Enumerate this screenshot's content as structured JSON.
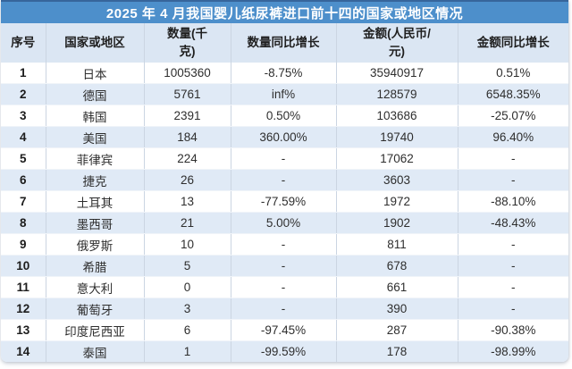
{
  "chart_data": {
    "type": "table",
    "title": "2025 年 4 月我国婴儿纸尿裤进口前十四的国家或地区情况",
    "columns": [
      "序号",
      "国家或地区",
      "数量(千克)",
      "数量同比增长",
      "金额(人民币/元)",
      "金额同比增长"
    ],
    "rows": [
      [
        "1",
        "日本",
        "1005360",
        "-8.75%",
        "35940917",
        "0.51%"
      ],
      [
        "2",
        "德国",
        "5761",
        "inf%",
        "128579",
        "6548.35%"
      ],
      [
        "3",
        "韩国",
        "2391",
        "0.50%",
        "103686",
        "-25.07%"
      ],
      [
        "4",
        "美国",
        "184",
        "360.00%",
        "19740",
        "96.40%"
      ],
      [
        "5",
        "菲律宾",
        "224",
        "-",
        "17062",
        "-"
      ],
      [
        "6",
        "捷克",
        "26",
        "-",
        "3603",
        "-"
      ],
      [
        "7",
        "土耳其",
        "13",
        "-77.59%",
        "1972",
        "-88.10%"
      ],
      [
        "8",
        "墨西哥",
        "21",
        "5.00%",
        "1902",
        "-48.43%"
      ],
      [
        "9",
        "俄罗斯",
        "10",
        "-",
        "811",
        "-"
      ],
      [
        "10",
        "希腊",
        "5",
        "-",
        "678",
        "-"
      ],
      [
        "11",
        "意大利",
        "0",
        "-",
        "661",
        "-"
      ],
      [
        "12",
        "葡萄牙",
        "3",
        "-",
        "390",
        "-"
      ],
      [
        "13",
        "印度尼西亚",
        "6",
        "-97.45%",
        "287",
        "-90.38%"
      ],
      [
        "14",
        "泰国",
        "1",
        "-99.59%",
        "178",
        "-98.99%"
      ]
    ],
    "layout": {
      "zebra_striping": true,
      "header_rows": 1,
      "legend": "none",
      "grid": true
    }
  },
  "display": {
    "header_labels": [
      "序号",
      "国家或地区",
      "数量(千\n克)",
      "数量同比增长",
      "金额(人民币/\n元)",
      "金额同比增长"
    ]
  },
  "colors": {
    "title_bar": "#4D8FCB",
    "title_bar_top_edge": "#37659B",
    "title_text": "#FFFFFF",
    "header_bg": "#DBE6F3",
    "row_alt_bg": "#E0EAF6",
    "grid_line": "#CBD5E2",
    "body_text": "#2E2E2E"
  }
}
